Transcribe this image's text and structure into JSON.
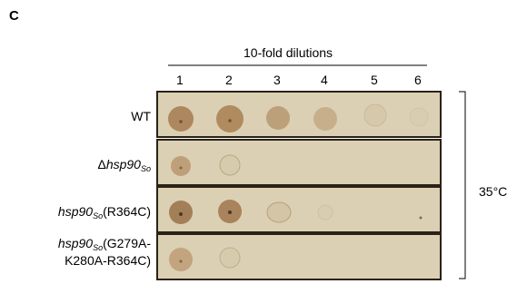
{
  "panel_label": "C",
  "header": "10-fold dilutions",
  "columns": [
    "1",
    "2",
    "3",
    "4",
    "5",
    "6"
  ],
  "rows": [
    {
      "lines": [
        [
          {
            "text": "WT"
          }
        ]
      ]
    },
    {
      "lines": [
        [
          {
            "text": "Δ"
          },
          {
            "text": "hsp90",
            "italic": true
          },
          {
            "text": "So",
            "italic": true,
            "sub": true
          }
        ]
      ]
    },
    {
      "lines": [
        [
          {
            "text": "hsp90",
            "italic": true
          },
          {
            "text": "So",
            "italic": true,
            "sub": true
          },
          {
            "text": "(R364C)"
          }
        ]
      ]
    },
    {
      "lines": [
        [
          {
            "text": "hsp90",
            "italic": true
          },
          {
            "text": "So",
            "italic": true,
            "sub": true
          },
          {
            "text": "(G279A-"
          }
        ],
        [
          {
            "text": "K280A-R364C)"
          }
        ]
      ]
    }
  ],
  "condition": "35°C"
}
